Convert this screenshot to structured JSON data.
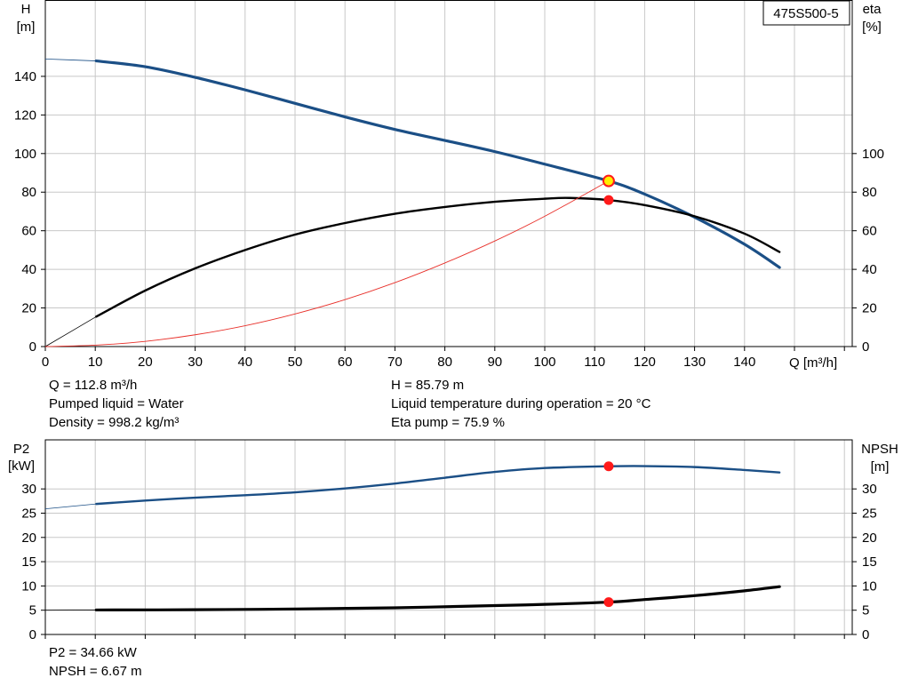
{
  "colors": {
    "grid": "#c8c8c8",
    "head_curve": "#1b4f86",
    "eta_curve": "#000000",
    "system_curve": "#e8302a",
    "p2_curve": "#1b4f86",
    "npsh_curve": "#000000",
    "operating_point": "#ff1a1a",
    "head_point": "#ffee00"
  },
  "labels": {
    "pump_model": "475S500-5",
    "top_y_left": [
      "H",
      "[m]"
    ],
    "top_y_right": [
      "eta",
      "[%]"
    ],
    "x_axis": "Q [m³/h]",
    "bottom_y_left": [
      "P2",
      "[kW]"
    ],
    "bottom_y_right": [
      "NPSH",
      "[m]"
    ]
  },
  "info_top": {
    "flow": "Q = 112.8 m³/h",
    "liquid": "Pumped liquid = Water",
    "density": "Density = 998.2 kg/m³",
    "head": "H = 85.79 m",
    "temperature": "Liquid temperature during operation = 20 °C",
    "eta": "Eta pump = 75.9 %"
  },
  "info_bottom": {
    "p2": "P2 = 34.66 kW",
    "npsh": "NPSH = 6.67 m"
  },
  "chart_data": [
    {
      "type": "line",
      "name": "pump-performance",
      "x_range": [
        0,
        160
      ],
      "x_ticks": [
        0,
        10,
        20,
        30,
        40,
        50,
        60,
        70,
        80,
        90,
        100,
        110,
        120,
        130,
        140
      ],
      "y_left_range": [
        0,
        160
      ],
      "y_left_ticks": [
        0,
        20,
        40,
        60,
        80,
        100,
        120,
        140
      ],
      "y_right_range": [
        0,
        160
      ],
      "y_right_ticks": [
        0,
        20,
        40,
        60,
        80,
        100
      ],
      "grid": true,
      "series": [
        {
          "key": "head",
          "x": [
            0,
            10.2,
            20,
            30,
            40,
            50,
            60,
            70,
            80,
            90,
            100,
            112.8,
            120,
            130,
            140,
            147
          ],
          "y": [
            149,
            148,
            145,
            139.5,
            133,
            126,
            119,
            112.5,
            106.8,
            101,
            94.5,
            85.8,
            79,
            67,
            53,
            41
          ]
        },
        {
          "key": "eta",
          "x": [
            10.2,
            20,
            30,
            40,
            50,
            60,
            70,
            80,
            90,
            100,
            105,
            112.8,
            120,
            130,
            140,
            147
          ],
          "y": [
            15.5,
            29,
            40.5,
            50,
            58,
            64,
            68.8,
            72.3,
            75,
            76.6,
            77,
            75.9,
            73.3,
            67.5,
            58.5,
            49
          ]
        },
        {
          "key": "system",
          "x": [
            0,
            10,
            20,
            30,
            40,
            50,
            60,
            70,
            80,
            90,
            100,
            112.8
          ],
          "y": [
            0,
            0.7,
            2.7,
            6.1,
            10.8,
            16.9,
            24.3,
            33.1,
            43.3,
            54.7,
            67.5,
            85.8
          ]
        }
      ],
      "points": [
        {
          "key": "head-op",
          "x": 112.8,
          "y": 85.8
        },
        {
          "key": "eta-op",
          "x": 112.8,
          "y": 75.9
        }
      ]
    },
    {
      "type": "line",
      "name": "power-npsh",
      "x_range": [
        0,
        160
      ],
      "y_left_range": [
        0,
        40
      ],
      "y_left_ticks": [
        0,
        5,
        10,
        15,
        20,
        25,
        30
      ],
      "y_right_range": [
        0,
        40
      ],
      "y_right_ticks": [
        0,
        5,
        10,
        15,
        20,
        25,
        30
      ],
      "grid": true,
      "series": [
        {
          "key": "p2",
          "x": [
            0,
            10.2,
            20,
            30,
            40,
            50,
            60,
            70,
            80,
            90,
            100,
            112.8,
            120,
            130,
            140,
            147
          ],
          "y": [
            25.9,
            26.9,
            27.6,
            28.2,
            28.7,
            29.3,
            30.1,
            31.1,
            32.3,
            33.5,
            34.3,
            34.66,
            34.7,
            34.5,
            33.9,
            33.4
          ]
        },
        {
          "key": "npsh",
          "x": [
            0,
            10.2,
            30,
            50,
            70,
            90,
            100,
            112.8,
            120,
            130,
            140,
            147
          ],
          "y": [
            5.0,
            5.05,
            5.1,
            5.25,
            5.5,
            5.95,
            6.2,
            6.67,
            7.2,
            8.0,
            9.0,
            9.85
          ]
        }
      ],
      "points": [
        {
          "key": "p2-op",
          "x": 112.8,
          "y": 34.66
        },
        {
          "key": "npsh-op",
          "x": 112.8,
          "y": 6.67
        }
      ]
    }
  ]
}
